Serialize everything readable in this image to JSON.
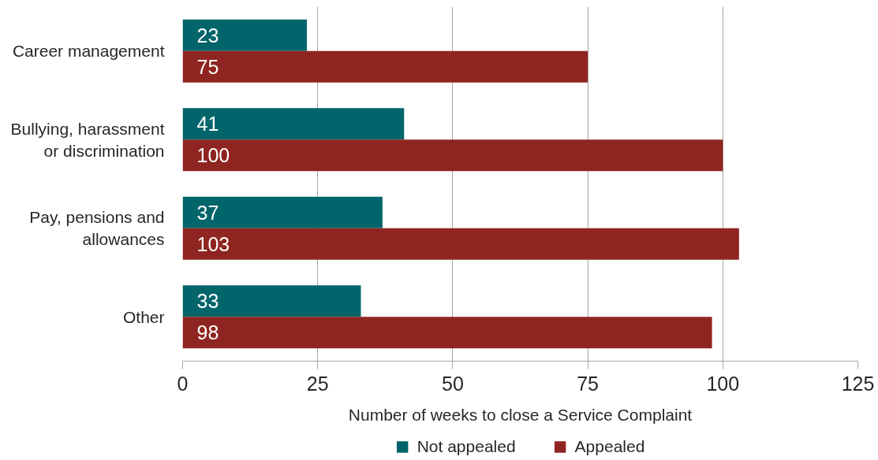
{
  "chart_data": {
    "type": "bar",
    "orientation": "horizontal",
    "categories": [
      "Career management",
      "Bullying, harassment\nor discrimination",
      "Pay, pensions and\nallowances",
      "Other"
    ],
    "series": [
      {
        "name": "Not appealed",
        "color": "#01656b",
        "values": [
          23,
          41,
          37,
          33
        ]
      },
      {
        "name": "Appealed",
        "color": "#8f2520",
        "values": [
          75,
          100,
          103,
          98
        ]
      }
    ],
    "xlabel": "Number of weeks to close a Service Complaint",
    "xlim": [
      0,
      125
    ],
    "xticks": [
      0,
      25,
      50,
      75,
      100,
      125
    ],
    "grid": "x",
    "legend": "bottom",
    "data_labels": true
  }
}
